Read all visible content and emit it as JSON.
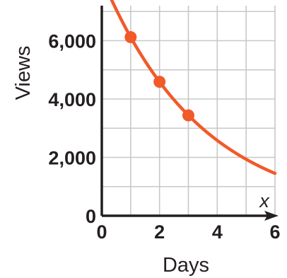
{
  "chart_data": {
    "type": "scatter",
    "title": "",
    "xlabel": "Days",
    "ylabel": "Views",
    "x_axis_variable": "x",
    "xlim": [
      0,
      6
    ],
    "ylim": [
      0,
      7200
    ],
    "x_ticks": [
      0,
      2,
      4,
      6
    ],
    "x_tick_labels": [
      "0",
      "2",
      "4",
      "6"
    ],
    "y_ticks": [
      0,
      2000,
      4000,
      6000
    ],
    "y_tick_labels": [
      "0",
      "2,000",
      "4,000",
      "6,000"
    ],
    "grid": true,
    "grid_x_step": 1,
    "grid_y_step": 1000,
    "legend": "none",
    "series": [
      {
        "kind": "points",
        "x": [
          1,
          2,
          3
        ],
        "y": [
          6120,
          4590,
          3440
        ]
      },
      {
        "kind": "curve",
        "model": "exponential",
        "a": 8160,
        "b": 0.75
      }
    ],
    "colors": {
      "curve": "#f15a29",
      "points": "#f15a29",
      "grid": "#c8c8c8",
      "axis": "#231f20"
    }
  }
}
